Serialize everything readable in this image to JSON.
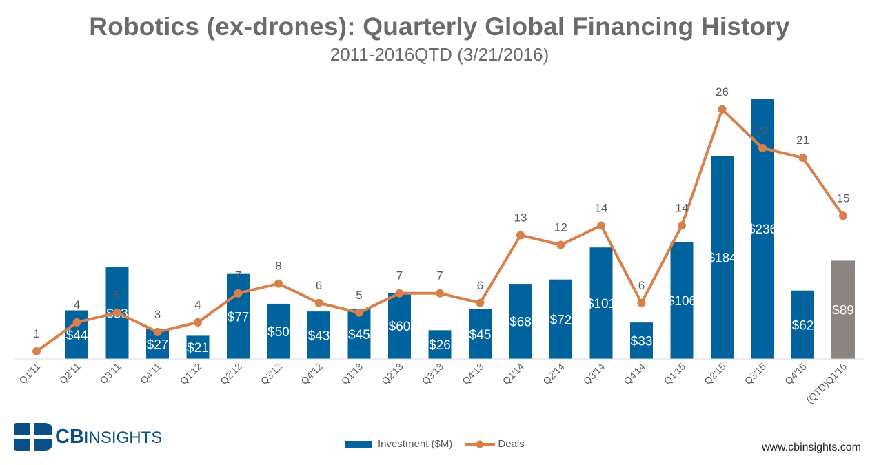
{
  "title": "Robotics (ex-drones): Quarterly Global Financing History",
  "subtitle": "2011-2016QTD (3/21/2016)",
  "logo": {
    "cb": "CB",
    "insights": "INSIGHTS"
  },
  "url": "www.cbinsights.com",
  "colors": {
    "investment": "#00639e",
    "investment_qtd": "#8c8481",
    "deals": "#d9804a",
    "title": "#6b6b6b"
  },
  "chart_data": {
    "type": "bar",
    "title": "Robotics (ex-drones): Quarterly Global Financing History",
    "subtitle": "2011-2016QTD (3/21/2016)",
    "categories": [
      "Q1'11",
      "Q2'11",
      "Q3'11",
      "Q4'11",
      "Q1'12",
      "Q2'12",
      "Q3'12",
      "Q4'12",
      "Q1'13",
      "Q2'13",
      "Q3'13",
      "Q4'13",
      "Q1'14",
      "Q2'14",
      "Q3'14",
      "Q4'14",
      "Q1'15",
      "Q2'15",
      "Q3'15",
      "Q4'15",
      "(QTD)Q1'16"
    ],
    "series": [
      {
        "name": "Investment ($M)",
        "type": "bar",
        "values": [
          0,
          44,
          83,
          27,
          21,
          77,
          50,
          43,
          45,
          60,
          26,
          45,
          68,
          72,
          101,
          33,
          106,
          184,
          236,
          62,
          89
        ],
        "labels": [
          "",
          "$44",
          "$83",
          "$27",
          "$21",
          "$77",
          "$50",
          "$43",
          "$45",
          "$60",
          "$26",
          "$45",
          "$68",
          "$72",
          "$101",
          "$33",
          "$106",
          "$184",
          "$236",
          "$62",
          "$89"
        ]
      },
      {
        "name": "Deals",
        "type": "line",
        "values": [
          1,
          4,
          5,
          3,
          4,
          7,
          8,
          6,
          5,
          7,
          7,
          6,
          13,
          12,
          14,
          6,
          14,
          26,
          22,
          21,
          15
        ]
      }
    ],
    "legend": {
      "position": "bottom",
      "entries": [
        "Investment ($M)",
        "Deals"
      ]
    },
    "grid": false
  }
}
